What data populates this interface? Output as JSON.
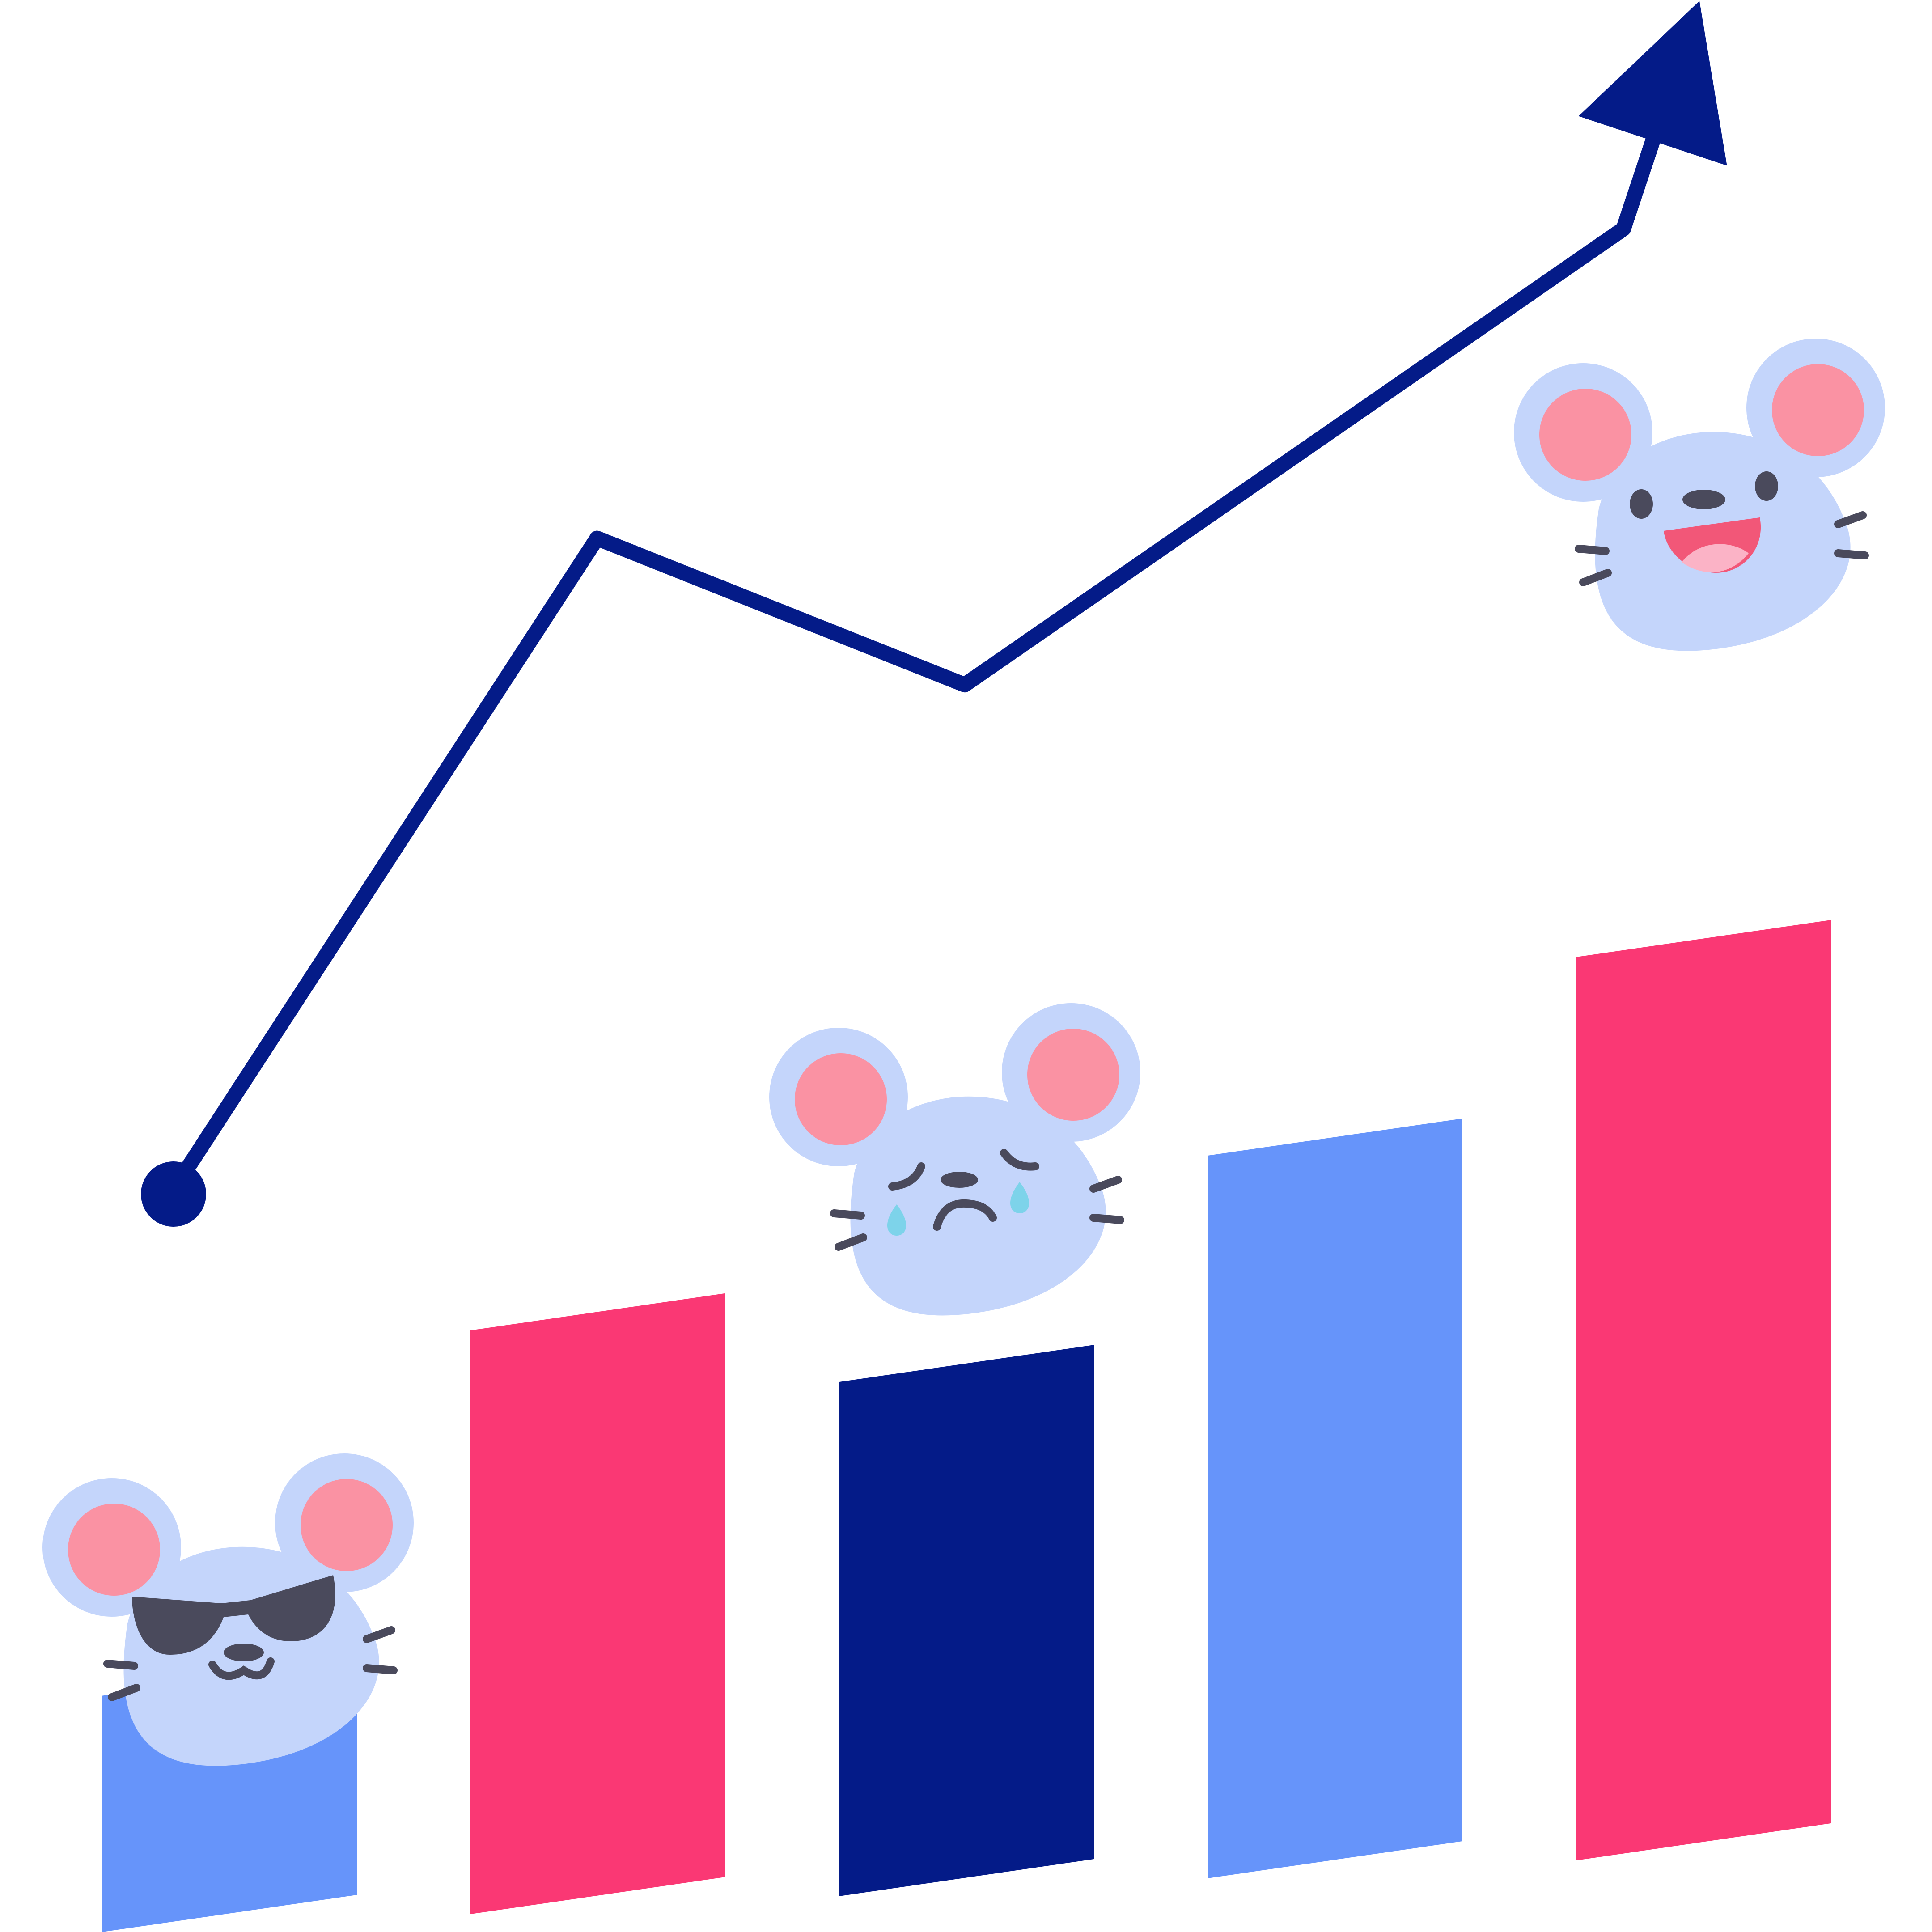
{
  "chart_data": {
    "type": "bar",
    "title": "",
    "xlabel": "",
    "ylabel": "",
    "grid": false,
    "legend": "none",
    "categories": [
      "",
      "",
      "",
      "",
      ""
    ],
    "values": [
      17,
      42,
      37,
      52,
      65
    ],
    "ylim": [
      0,
      75
    ],
    "bar_colors": [
      "#6694fa",
      "#fa3874",
      "#041b88",
      "#6694fa",
      "#fa3874"
    ],
    "trend_line": {
      "color": "#041b88",
      "values": [
        24,
        64,
        55,
        83,
        97
      ],
      "start_marker": "dot",
      "end_marker": "arrow"
    },
    "mascots": [
      {
        "bar_index": 0,
        "icon": "mouse-sunglasses-icon"
      },
      {
        "bar_index": 2,
        "icon": "mouse-crying-icon"
      },
      {
        "bar_index": 4,
        "icon": "mouse-happy-icon"
      }
    ]
  },
  "colors": {
    "background": "#ffffff",
    "mouse_face": "#c4d5fb",
    "mouse_ear_inner": "#fa92a3",
    "feature_dark": "#4a4a5c",
    "tongue": "#f25778",
    "tongue_light": "#fbb3c6",
    "tear": "#7dd3ea"
  }
}
